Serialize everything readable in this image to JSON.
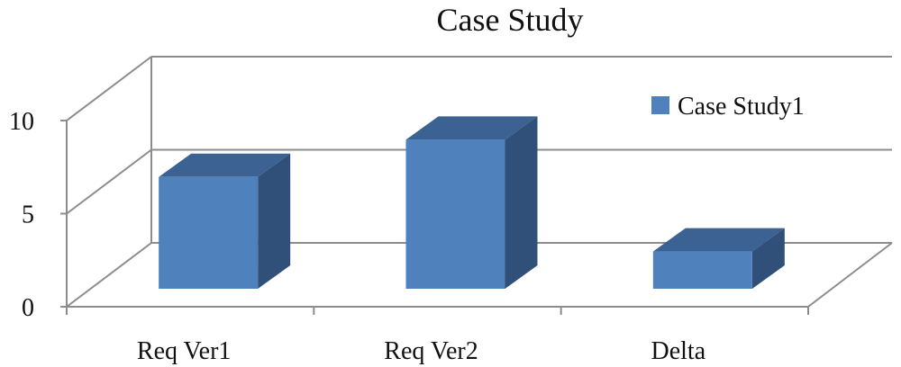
{
  "chart_data": {
    "type": "bar",
    "title": "Case Study",
    "categories": [
      "Req Ver1",
      "Req Ver2",
      "Delta"
    ],
    "series": [
      {
        "name": "Case Study1",
        "values": [
          6,
          8,
          2
        ],
        "color": "#4f81bd"
      }
    ],
    "ylim": [
      0,
      10
    ],
    "yticks": [
      0,
      5,
      10
    ],
    "grid": true,
    "three_d": true,
    "legend_position": "top-right",
    "colors": {
      "bar_front": "#4f81bd",
      "bar_top": "#3b6292",
      "bar_side": "#30507a",
      "gridline": "#8c8c8c"
    }
  }
}
